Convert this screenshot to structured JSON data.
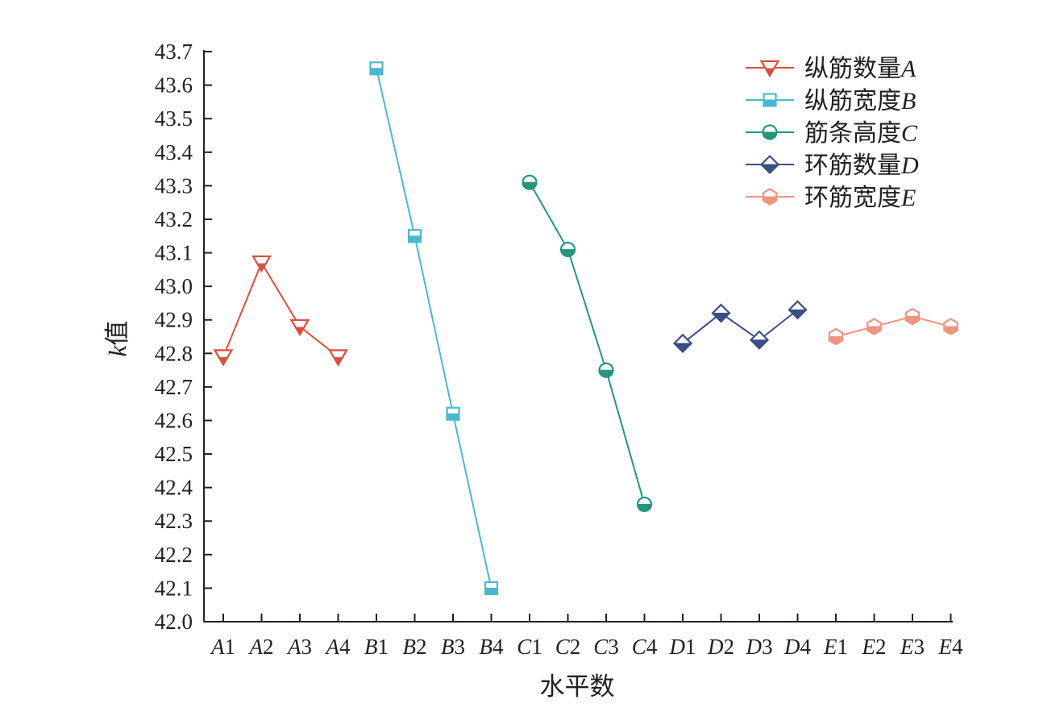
{
  "chart_data": {
    "type": "line",
    "ylabel": "k值",
    "xlabel": "水平数",
    "ylim": [
      42.0,
      43.7
    ],
    "yticks": [
      "42.0",
      "42.1",
      "42.2",
      "42.3",
      "42.4",
      "42.5",
      "42.6",
      "42.7",
      "42.8",
      "42.9",
      "43.0",
      "43.1",
      "43.2",
      "43.3",
      "43.4",
      "43.5",
      "43.6",
      "43.7"
    ],
    "categories": [
      "A1",
      "A2",
      "A3",
      "A4",
      "B1",
      "B2",
      "B3",
      "B4",
      "C1",
      "C2",
      "C3",
      "C4",
      "D1",
      "D2",
      "D3",
      "D4",
      "E1",
      "E2",
      "E3",
      "E4"
    ],
    "legend_position": "top-right",
    "grid": false,
    "series": [
      {
        "name": "纵筋数量A",
        "color": "#d9503f",
        "marker": "triangle-down-half",
        "x": [
          "A1",
          "A2",
          "A3",
          "A4"
        ],
        "values": [
          42.79,
          43.07,
          42.88,
          42.79
        ]
      },
      {
        "name": "纵筋宽度B",
        "color": "#4bb8d0",
        "marker": "square-half",
        "x": [
          "B1",
          "B2",
          "B3",
          "B4"
        ],
        "values": [
          43.65,
          43.15,
          42.62,
          42.1
        ]
      },
      {
        "name": "筋条高度C",
        "color": "#25967e",
        "marker": "circle-half",
        "x": [
          "C1",
          "C2",
          "C3",
          "C4"
        ],
        "values": [
          43.31,
          43.11,
          42.75,
          42.35
        ]
      },
      {
        "name": "环筋数量D",
        "color": "#3b4f86",
        "marker": "diamond-half",
        "x": [
          "D1",
          "D2",
          "D3",
          "D4"
        ],
        "values": [
          42.83,
          42.92,
          42.84,
          42.93
        ]
      },
      {
        "name": "环筋宽度E",
        "color": "#ef9481",
        "marker": "hexagon-half",
        "x": [
          "E1",
          "E2",
          "E3",
          "E4"
        ],
        "values": [
          42.85,
          42.88,
          42.91,
          42.88
        ]
      }
    ]
  }
}
